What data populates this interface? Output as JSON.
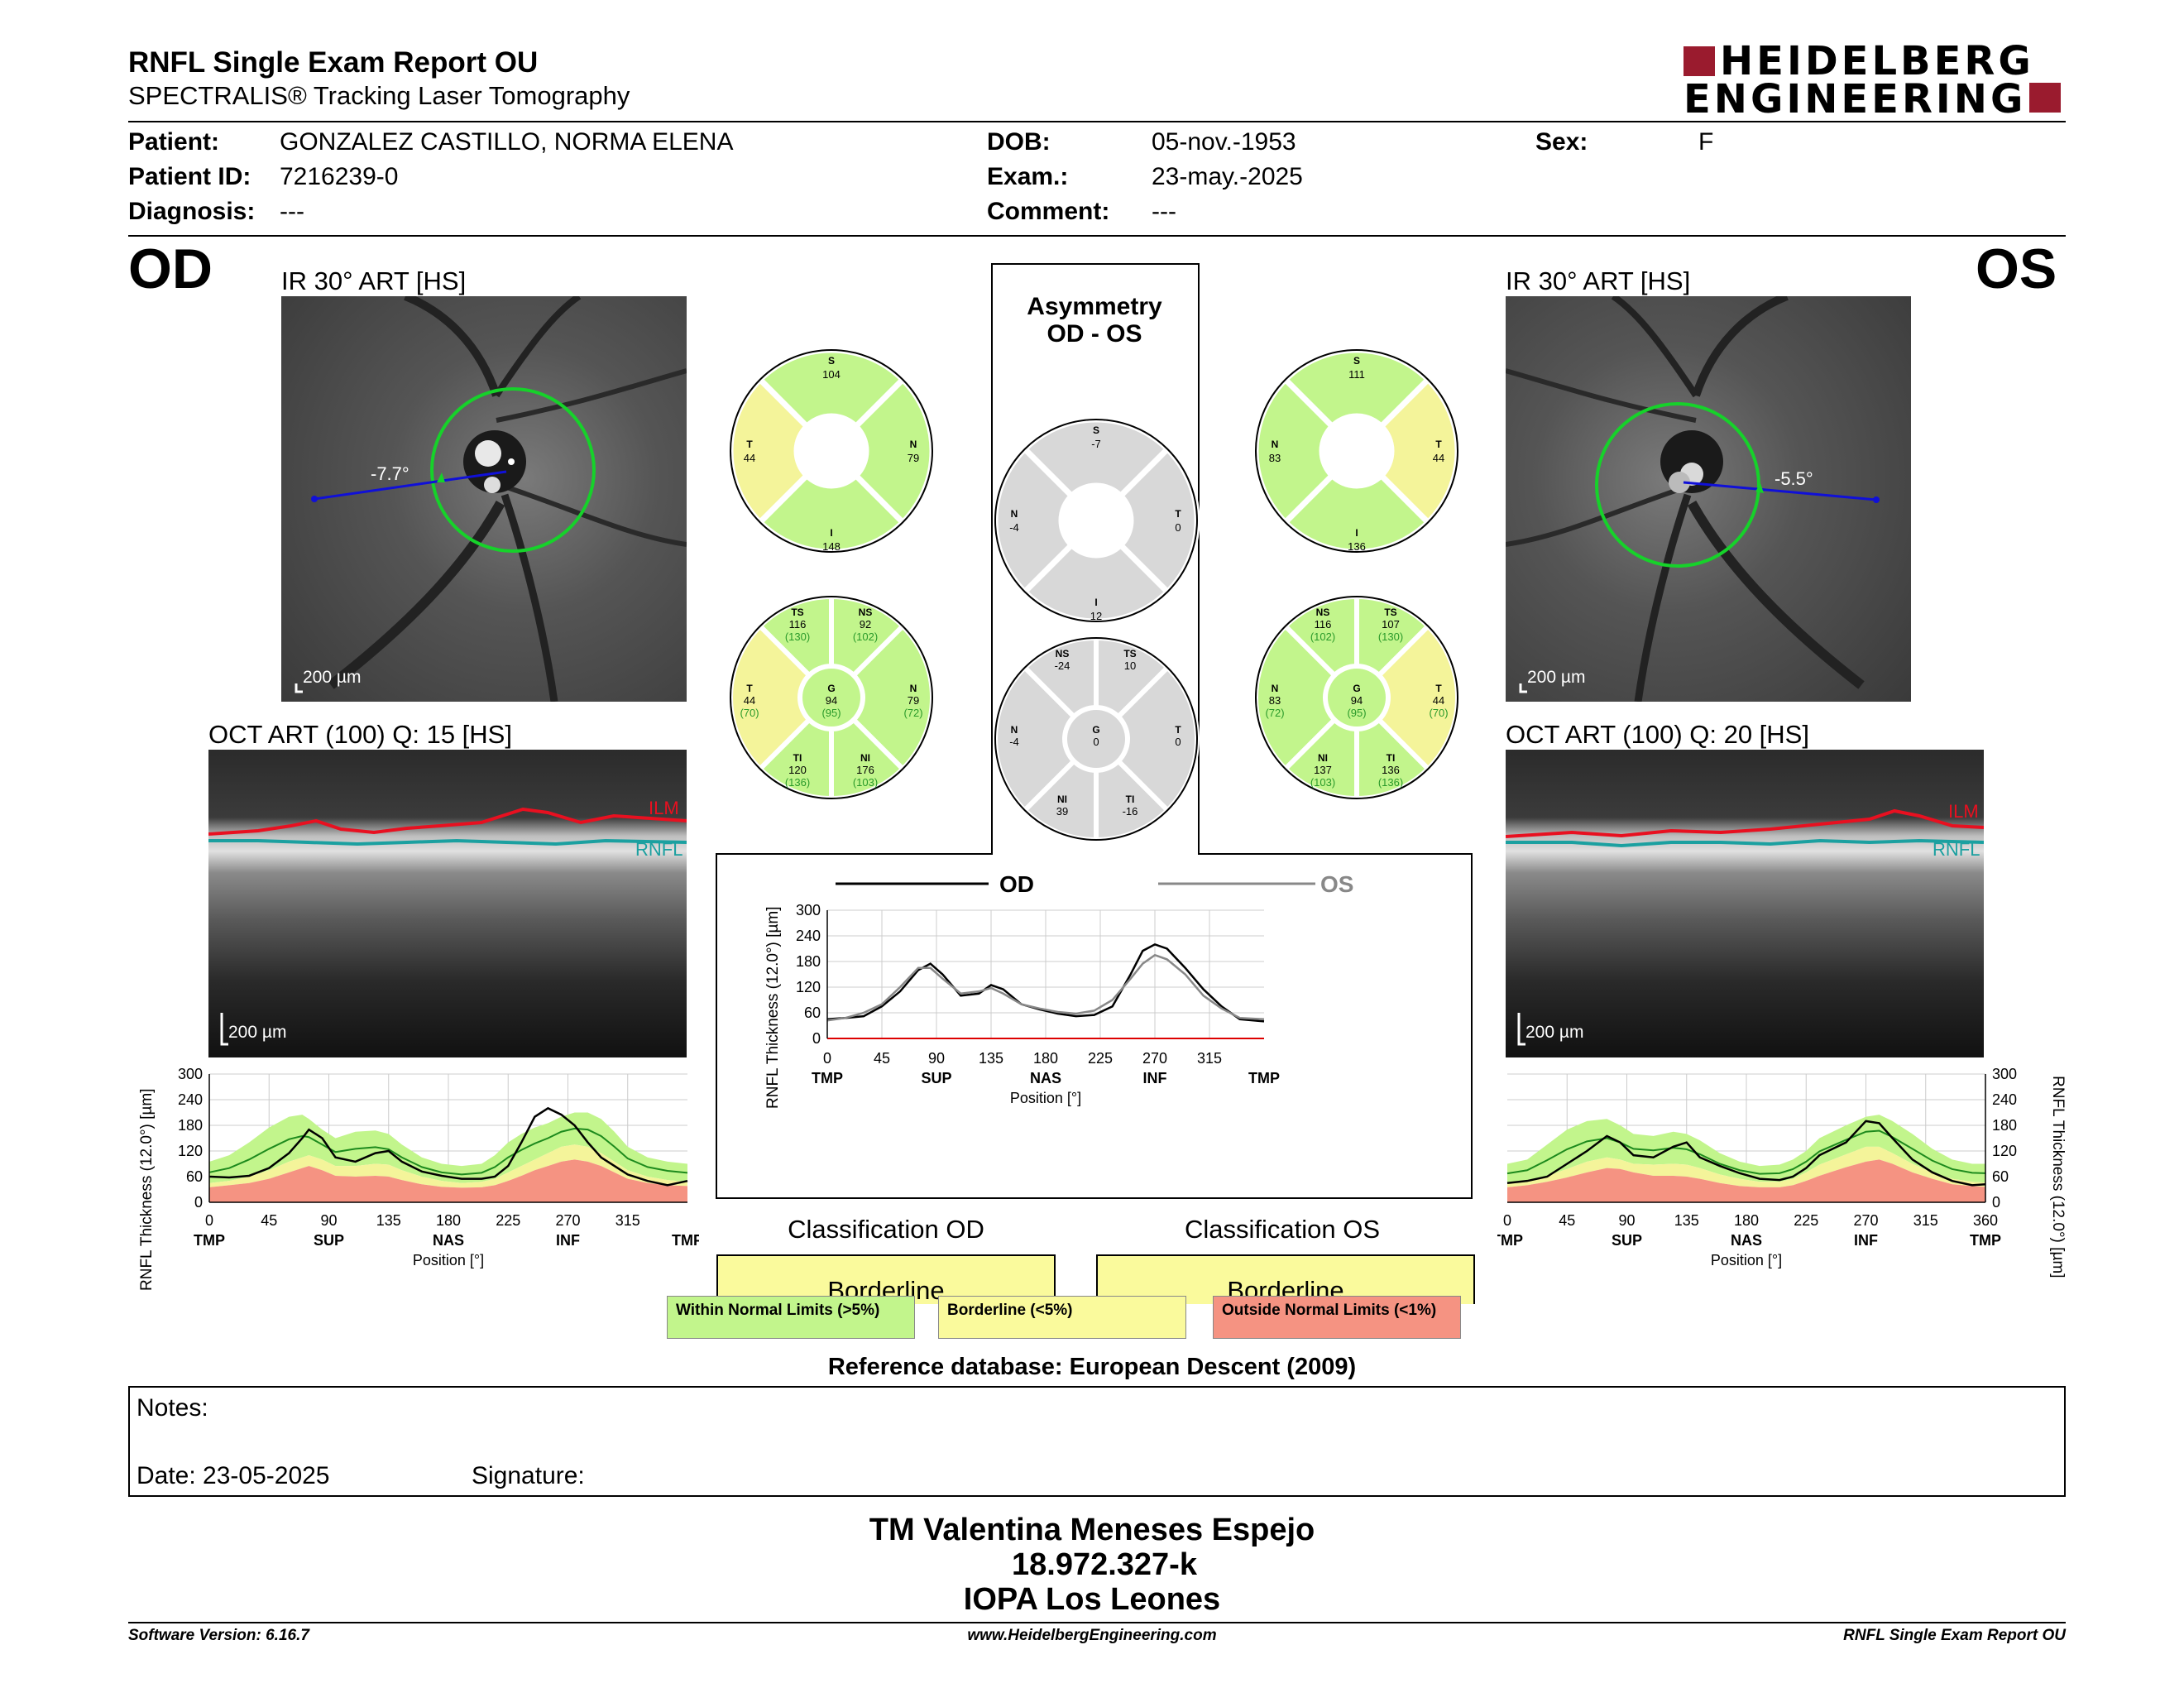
{
  "header": {
    "title": "RNFL Single Exam Report OU",
    "subtitle": "SPECTRALIS® Tracking Laser Tomography",
    "logo_line1": "HEIDELBERG",
    "logo_line2": "ENGINEERING"
  },
  "patient": {
    "patient_label": "Patient:",
    "patient_value": "GONZALEZ CASTILLO, NORMA ELENA",
    "id_label": "Patient ID:",
    "id_value": "7216239-0",
    "diagnosis_label": "Diagnosis:",
    "diagnosis_value": "---",
    "dob_label": "DOB:",
    "dob_value": "05-nov.-1953",
    "exam_label": "Exam.:",
    "exam_value": "23-may.-2025",
    "comment_label": "Comment:",
    "comment_value": "---",
    "sex_label": "Sex:",
    "sex_value": "F"
  },
  "od": {
    "eye": "OD",
    "ir_title": "IR 30° ART [HS]",
    "angle": "-7.7°",
    "scale": "200 µm",
    "oct_title": "OCT ART (100) Q: 15 [HS]",
    "oct_scale": "200 µm",
    "ilm": "ILM",
    "rnfl": "RNFL",
    "sectors4": {
      "S": "104",
      "T": "44",
      "N": "79",
      "I": "148"
    },
    "sectors6": {
      "TS": [
        "116",
        "(130)"
      ],
      "NS": [
        "92",
        "(102)"
      ],
      "T": [
        "44",
        "(70)"
      ],
      "G": [
        "94",
        "(95)"
      ],
      "N": [
        "79",
        "(72)"
      ],
      "TI": [
        "120",
        "(136)"
      ],
      "NI": [
        "176",
        "(103)"
      ]
    }
  },
  "os": {
    "eye": "OS",
    "ir_title": "IR 30° ART [HS]",
    "angle": "-5.5°",
    "scale": "200 µm",
    "oct_title": "OCT ART (100) Q: 20 [HS]",
    "oct_scale": "200 µm",
    "ilm": "ILM",
    "rnfl": "RNFL",
    "sectors4": {
      "S": "111",
      "N": "83",
      "T": "44",
      "I": "136"
    },
    "sectors6": {
      "NS": [
        "116",
        "(102)"
      ],
      "TS": [
        "107",
        "(130)"
      ],
      "N": [
        "83",
        "(72)"
      ],
      "G": [
        "94",
        "(95)"
      ],
      "T": [
        "44",
        "(70)"
      ],
      "NI": [
        "137",
        "(103)"
      ],
      "TI": [
        "136",
        "(136)"
      ]
    }
  },
  "asymmetry": {
    "title1": "Asymmetry",
    "title2": "OD - OS",
    "sectors4": {
      "S": "-7",
      "N": "-4",
      "T": "0",
      "I": "12"
    },
    "sectors6": {
      "NS": "-24",
      "TS": "10",
      "N": "-4",
      "G": "0",
      "T": "0",
      "NI": "39",
      "TI": "-16"
    }
  },
  "chart_data": [
    {
      "type": "line",
      "title": "",
      "ylabel": "RNFL Thickness (12.0°) [µm]",
      "xlabel": "Position [°]",
      "ylim": [
        0,
        300
      ],
      "xlim": [
        0,
        360
      ],
      "yticks": [
        "300",
        "240",
        "180",
        "120",
        "60",
        "0"
      ],
      "xticks": [
        "0",
        "45",
        "90",
        "135",
        "180",
        "225",
        "270",
        "315"
      ],
      "xticks_labels": [
        "TMP",
        "SUP",
        "NAS",
        "INF",
        "TMP"
      ],
      "series": [
        {
          "name": "OD",
          "x": [
            0,
            15,
            30,
            45,
            60,
            70,
            75,
            85,
            95,
            110,
            125,
            135,
            145,
            160,
            175,
            190,
            205,
            215,
            225,
            235,
            245,
            255,
            265,
            275,
            285,
            295,
            305,
            315,
            330,
            345,
            360
          ],
          "values": [
            60,
            58,
            62,
            80,
            115,
            150,
            170,
            150,
            105,
            95,
            115,
            120,
            95,
            72,
            62,
            55,
            55,
            60,
            85,
            140,
            200,
            220,
            205,
            180,
            140,
            105,
            85,
            65,
            50,
            40,
            50
          ]
        }
      ],
      "normal_band_upper": [
        95,
        110,
        140,
        175,
        200,
        205,
        195,
        170,
        150,
        165,
        168,
        160,
        135,
        105,
        90,
        85,
        90,
        110,
        140,
        160,
        175,
        185,
        200,
        210,
        210,
        195,
        165,
        130,
        105,
        95,
        90
      ],
      "normal_band_lower": [
        45,
        50,
        60,
        75,
        95,
        105,
        110,
        100,
        85,
        85,
        90,
        88,
        75,
        60,
        50,
        45,
        48,
        55,
        70,
        85,
        100,
        115,
        130,
        135,
        130,
        115,
        95,
        75,
        60,
        52,
        48
      ],
      "outside_upper": [
        35,
        40,
        45,
        55,
        70,
        80,
        85,
        75,
        62,
        60,
        62,
        60,
        52,
        42,
        36,
        34,
        35,
        40,
        50,
        62,
        75,
        85,
        95,
        100,
        95,
        85,
        70,
        55,
        45,
        40,
        38
      ]
    },
    {
      "type": "line",
      "title": "",
      "ylabel": "RNFL Thickness (12.0°) [µm]",
      "xlabel": "Position [°]",
      "ylim": [
        0,
        300
      ],
      "xlim": [
        0,
        360
      ],
      "yticks": [
        "300",
        "240",
        "180",
        "120",
        "60",
        "0"
      ],
      "xticks": [
        "0",
        "45",
        "90",
        "135",
        "180",
        "225",
        "270",
        "315"
      ],
      "xticks_labels": [
        "TMP",
        "SUP",
        "NAS",
        "INF",
        "TMP"
      ],
      "series": [
        {
          "name": "OD",
          "x": [
            0,
            15,
            30,
            45,
            60,
            75,
            85,
            95,
            110,
            125,
            135,
            145,
            160,
            175,
            190,
            205,
            220,
            235,
            250,
            260,
            270,
            280,
            295,
            310,
            325,
            340,
            360
          ],
          "values": [
            45,
            48,
            52,
            75,
            110,
            160,
            175,
            150,
            100,
            105,
            125,
            115,
            80,
            68,
            58,
            52,
            55,
            75,
            150,
            205,
            220,
            210,
            165,
            115,
            75,
            45,
            40
          ]
        },
        {
          "name": "OS",
          "x": [
            0,
            15,
            30,
            45,
            60,
            75,
            85,
            95,
            110,
            125,
            135,
            145,
            160,
            175,
            190,
            205,
            220,
            235,
            250,
            260,
            270,
            280,
            295,
            310,
            325,
            340,
            360
          ],
          "values": [
            42,
            48,
            60,
            80,
            120,
            165,
            165,
            140,
            105,
            110,
            118,
            105,
            80,
            70,
            62,
            58,
            65,
            90,
            140,
            175,
            195,
            185,
            150,
            100,
            70,
            48,
            45
          ]
        }
      ],
      "yticks_c": [
        "300",
        "240",
        "180",
        "120",
        "60",
        "0"
      ],
      "xticks_c": [
        "0",
        "45",
        "90",
        "135",
        "180",
        "225",
        "270",
        "315"
      ],
      "xlabels_c": [
        "TMP",
        "SUP",
        "NAS",
        "INF",
        "TMP"
      ],
      "legend": [
        "OD",
        "OS"
      ]
    },
    {
      "type": "line",
      "title": "",
      "ylabel": "RNFL Thickness (12.0°) [µm]",
      "xlabel": "Position [°]",
      "ylim": [
        0,
        300
      ],
      "xlim": [
        0,
        360
      ],
      "yticks": [
        "300",
        "240",
        "180",
        "120",
        "60",
        "0"
      ],
      "xticks": [
        "0",
        "45",
        "90",
        "135",
        "180",
        "225",
        "270",
        "315",
        "360"
      ],
      "xticks_labels": [
        "TMP",
        "SUP",
        "NAS",
        "INF",
        "TMP"
      ],
      "series": [
        {
          "name": "OS",
          "x": [
            0,
            15,
            30,
            45,
            60,
            75,
            85,
            95,
            110,
            125,
            135,
            145,
            160,
            175,
            190,
            205,
            215,
            225,
            235,
            245,
            255,
            270,
            280,
            290,
            305,
            320,
            335,
            350,
            360
          ],
          "values": [
            45,
            50,
            60,
            90,
            120,
            155,
            140,
            110,
            105,
            130,
            140,
            105,
            85,
            68,
            55,
            52,
            60,
            80,
            110,
            125,
            140,
            190,
            185,
            150,
            100,
            70,
            50,
            40,
            42
          ]
        }
      ],
      "normal_band_upper": [
        90,
        100,
        135,
        170,
        190,
        195,
        180,
        160,
        155,
        165,
        160,
        145,
        115,
        95,
        85,
        88,
        100,
        120,
        150,
        165,
        180,
        200,
        205,
        190,
        160,
        125,
        100,
        90,
        90
      ],
      "normal_band_lower": [
        45,
        50,
        62,
        78,
        95,
        105,
        100,
        90,
        88,
        90,
        88,
        80,
        65,
        55,
        48,
        48,
        55,
        70,
        88,
        100,
        112,
        130,
        130,
        115,
        90,
        70,
        55,
        48,
        46
      ],
      "outside_upper": [
        35,
        40,
        48,
        58,
        70,
        80,
        78,
        70,
        62,
        62,
        60,
        55,
        45,
        38,
        35,
        35,
        40,
        50,
        62,
        72,
        82,
        95,
        100,
        90,
        70,
        55,
        42,
        38,
        36
      ]
    }
  ],
  "axes": {
    "y_label": "RNFL Thickness (12.0°) [µm]",
    "x_label": "Position [°]",
    "od_ticks": [
      "0",
      "45",
      "90",
      "135",
      "180",
      "225",
      "270",
      "315"
    ],
    "os_ticks": [
      "0",
      "45",
      "90",
      "135",
      "180",
      "225",
      "270",
      "315",
      "360"
    ],
    "pos_labels": [
      "TMP",
      "SUP",
      "NAS",
      "INF",
      "TMP"
    ],
    "y_ticks": [
      "300",
      "240",
      "180",
      "120",
      "60",
      "0"
    ]
  },
  "center_chart": {
    "legend_od": "OD",
    "legend_os": "OS"
  },
  "classification": {
    "od_title": "Classification OD",
    "od_value": "Borderline",
    "os_title": "Classification OS",
    "os_value": "Borderline"
  },
  "legend": {
    "wnl": "Within Normal Limits (>5%)",
    "bl": "Borderline (<5%)",
    "onl": "Outside Normal Limits (<1%)"
  },
  "reference": "Reference database: European Descent (2009)",
  "notes": {
    "notes_label": "Notes:",
    "date_label": "Date: 23-05-2025",
    "signature_label": "Signature:"
  },
  "signatory": {
    "name": "TM Valentina Meneses Espejo",
    "id": "18.972.327-k",
    "org": "IOPA Los Leones"
  },
  "footer": {
    "software": "Software Version: 6.16.7",
    "web": "www.HeidelbergEngineering.com",
    "report": "RNFL Single Exam Report OU"
  },
  "colors": {
    "green": "#c2f58c",
    "yellow": "#f4f49a",
    "red": "#f59382",
    "gray": "#d8d8d8",
    "brand": "#9a1b2e",
    "ilm": "#e0101e",
    "rnfl": "#1ba0a0"
  }
}
